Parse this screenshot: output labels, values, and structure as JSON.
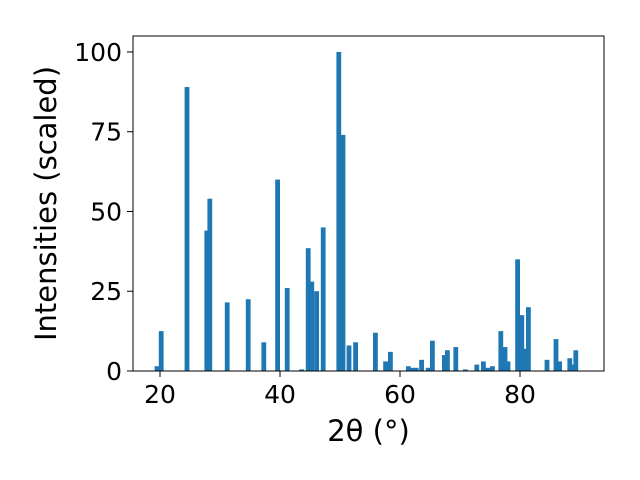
{
  "chart_data": {
    "type": "bar",
    "title": "",
    "xlabel": "2θ (°)",
    "ylabel": "Intensities (scaled)",
    "xlim": [
      15.5,
      94
    ],
    "ylim": [
      0,
      105
    ],
    "xticks": [
      20,
      40,
      60,
      80
    ],
    "yticks": [
      0,
      25,
      50,
      75,
      100
    ],
    "grid": false,
    "bar_color": "#1f77b4",
    "bar_width_deg": 0.8,
    "series": [
      {
        "x": [
          19.5,
          20.2,
          24.5,
          27.8,
          28.3,
          31.2,
          34.7,
          37.3,
          39.6,
          41.2,
          43.6,
          44.7,
          45.3,
          46.1,
          47.2,
          49.8,
          50.5,
          51.5,
          52.6,
          55.9,
          57.6,
          58.4,
          61.4,
          62.0,
          62.7,
          63.6,
          64.7,
          65.4,
          67.4,
          67.9,
          69.3,
          70.9,
          72.8,
          73.9,
          74.6,
          75.4,
          76.8,
          77.5,
          78.0,
          79.6,
          80.3,
          80.9,
          81.4,
          84.5,
          86.0,
          86.6,
          88.3,
          88.9,
          89.3
        ],
        "values": [
          1.5,
          12.5,
          89,
          44,
          54,
          21.5,
          22.5,
          9,
          60,
          26,
          0.5,
          38.5,
          28,
          25,
          45,
          100,
          74,
          8,
          9,
          12,
          3,
          6,
          1.5,
          1,
          1,
          3.5,
          1,
          9.5,
          5,
          6.5,
          7.5,
          0.5,
          2,
          3,
          1,
          1.5,
          12.5,
          7.5,
          3,
          35,
          17.5,
          7,
          20,
          3.5,
          10,
          3,
          4,
          2,
          6.5
        ]
      }
    ]
  }
}
